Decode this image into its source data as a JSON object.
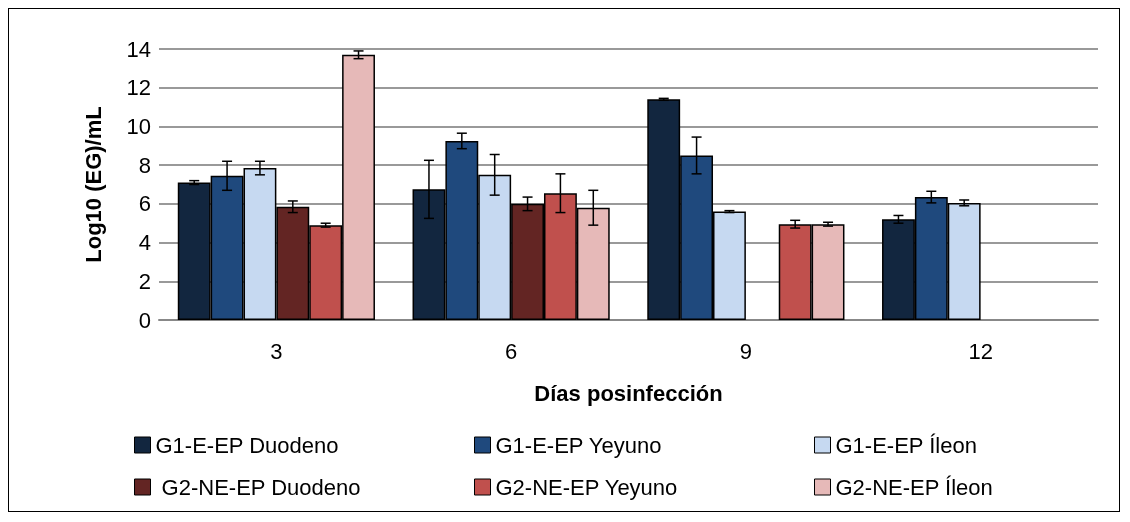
{
  "chart_data": {
    "type": "bar",
    "xlabel": "Días posinfección",
    "ylabel": "Log10 (EG)/mL",
    "categories": [
      "3",
      "6",
      "9",
      "12"
    ],
    "ylim": [
      0,
      14
    ],
    "yticks": [
      0,
      2,
      4,
      6,
      8,
      10,
      12,
      14
    ],
    "grid": "y",
    "legend": "bottom",
    "series": [
      {
        "name": "G1-E-EP Duodeno",
        "color": "#12263f",
        "values": [
          7.1,
          6.75,
          11.4,
          5.2
        ],
        "errors": [
          0.1,
          1.5,
          0.05,
          0.2
        ]
      },
      {
        "name": "G1-E-EP Yeyuno",
        "color": "#1f497d",
        "values": [
          7.45,
          9.25,
          8.5,
          6.35
        ],
        "errors": [
          0.75,
          0.4,
          0.95,
          0.3
        ]
      },
      {
        "name": "G1-E-EP Íleon",
        "color": "#c6d9f1",
        "values": [
          7.85,
          7.5,
          5.6,
          6.05
        ],
        "errors": [
          0.35,
          1.05,
          0.05,
          0.15
        ]
      },
      {
        "name": " G2-NE-EP Duodeno",
        "color": "#632523",
        "values": [
          5.85,
          6.0,
          0,
          null
        ],
        "errors": [
          0.3,
          0.35,
          null,
          null
        ]
      },
      {
        "name": "G2-NE-EP Yeyuno",
        "color": "#c0504d",
        "values": [
          4.9,
          6.55,
          4.95,
          null
        ],
        "errors": [
          0.1,
          1.0,
          0.2,
          null
        ]
      },
      {
        "name": "G2-NE-EP Íleon",
        "color": "#e6b9b8",
        "values": [
          13.7,
          5.8,
          4.95,
          null
        ],
        "errors": [
          0.2,
          0.9,
          0.1,
          null
        ]
      }
    ]
  }
}
